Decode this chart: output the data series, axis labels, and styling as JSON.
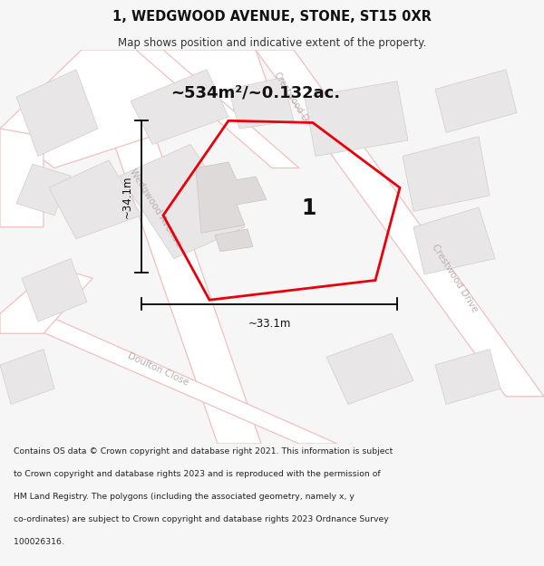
{
  "title_line1": "1, WEDGWOOD AVENUE, STONE, ST15 0XR",
  "title_line2": "Map shows position and indicative extent of the property.",
  "area_text": "~534m²/~0.132ac.",
  "dim_vertical": "~34.1m",
  "dim_horizontal": "~33.1m",
  "property_label": "1",
  "footer_lines": [
    "Contains OS data © Crown copyright and database right 2021. This information is subject",
    "to Crown copyright and database rights 2023 and is reproduced with the permission of",
    "HM Land Registry. The polygons (including the associated geometry, namely x, y",
    "co-ordinates) are subject to Crown copyright and database rights 2023 Ordnance Survey",
    "100026316."
  ],
  "bg_color": "#f7f6f6",
  "map_bg": "#ffffff",
  "road_fill": "#ffffff",
  "road_stroke": "#f0c0c0",
  "block_fill": "#e8e6e6",
  "block_stroke": "#d0cccc",
  "red_color": "#e8000a",
  "dim_color": "#000000",
  "label_color": "#b8b0b0",
  "label_color2": "#c8c0c0"
}
